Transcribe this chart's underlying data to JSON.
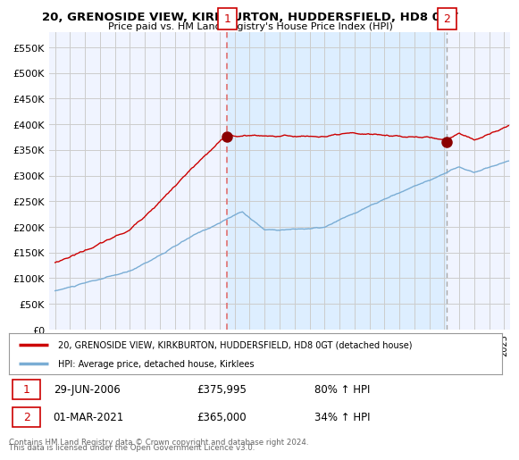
{
  "title": "20, GRENOSIDE VIEW, KIRKBURTON, HUDDERSFIELD, HD8 0GT",
  "subtitle": "Price paid vs. HM Land Registry's House Price Index (HPI)",
  "ylabel_ticks": [
    "£0",
    "£50K",
    "£100K",
    "£150K",
    "£200K",
    "£250K",
    "£300K",
    "£350K",
    "£400K",
    "£450K",
    "£500K",
    "£550K"
  ],
  "ytick_values": [
    0,
    50000,
    100000,
    150000,
    200000,
    250000,
    300000,
    350000,
    400000,
    450000,
    500000,
    550000
  ],
  "ylim": [
    0,
    580000
  ],
  "marker1_x": 2006.5,
  "marker1_price": 375995,
  "marker2_x": 2021.17,
  "marker2_price": 365000,
  "marker1_date_str": "29-JUN-2006",
  "marker1_price_str": "£375,995",
  "marker1_pct": "80% ↑ HPI",
  "marker2_date_str": "01-MAR-2021",
  "marker2_price_str": "£365,000",
  "marker2_pct": "34% ↑ HPI",
  "red_line_color": "#cc0000",
  "blue_line_color": "#7aadd4",
  "marker_dot_color": "#8b0000",
  "vline1_color": "#e07070",
  "vline2_color": "#aaaaaa",
  "grid_color": "#cccccc",
  "shaded_bg_color": "#ddeeff",
  "plot_bg_color": "#f0f4ff",
  "white": "#ffffff",
  "legend_label_red": "20, GRENOSIDE VIEW, KIRKBURTON, HUDDERSFIELD, HD8 0GT (detached house)",
  "legend_label_blue": "HPI: Average price, detached house, Kirklees",
  "footer1": "Contains HM Land Registry data © Crown copyright and database right 2024.",
  "footer2": "This data is licensed under the Open Government Licence v3.0.",
  "marker_box_color": "#cc0000"
}
